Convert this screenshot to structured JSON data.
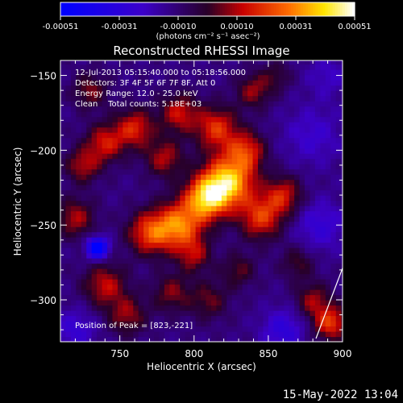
{
  "chart_data": {
    "type": "heatmap",
    "title": "Reconstructed RHESSI Image",
    "xlabel": "Heliocentric X (arcsec)",
    "ylabel": "Heliocentric Y (arcsec)",
    "xlim": [
      710,
      900
    ],
    "ylim": [
      -328,
      -140
    ],
    "x_ticks": [
      750,
      800,
      850,
      900
    ],
    "y_ticks": [
      -150,
      -200,
      -250,
      -300
    ],
    "colorbar": {
      "ticks": [
        "-0.00051",
        "-0.00031",
        "-0.00010",
        "0.00010",
        "0.00031",
        "0.00051"
      ],
      "label": "(photons cm⁻² s⁻¹ asec⁻²)",
      "range": [
        -0.00051,
        0.00051
      ]
    },
    "annotations": [
      "12-Jul-2013 05:15:40.000 to 05:18:56.000",
      "Detectors: 3F 4F 5F 6F 7F 8F, Att 0",
      "Energy Range: 12.0 - 25.0 keV",
      "Clean    Total counts: 5.18E+03"
    ],
    "peak_label": "Position of Peak = [823,-221]",
    "peak": {
      "x": 823,
      "y": -221
    },
    "blobs": [
      {
        "x": 823,
        "y": -221,
        "v": 0.00051,
        "s": 12
      },
      {
        "x": 808,
        "y": -232,
        "v": 0.00044,
        "s": 10
      },
      {
        "x": 790,
        "y": -250,
        "v": 0.0004,
        "s": 11
      },
      {
        "x": 770,
        "y": -255,
        "v": 0.00032,
        "s": 10
      },
      {
        "x": 845,
        "y": -245,
        "v": 0.0003,
        "s": 10
      },
      {
        "x": 860,
        "y": -230,
        "v": 0.00026,
        "s": 9
      },
      {
        "x": 835,
        "y": -200,
        "v": 0.00028,
        "s": 9
      },
      {
        "x": 815,
        "y": -185,
        "v": 0.0003,
        "s": 10
      },
      {
        "x": 790,
        "y": -175,
        "v": 0.00025,
        "s": 9
      },
      {
        "x": 760,
        "y": -185,
        "v": 0.00028,
        "s": 9
      },
      {
        "x": 740,
        "y": -195,
        "v": 0.00026,
        "s": 9
      },
      {
        "x": 725,
        "y": -210,
        "v": 0.00022,
        "s": 8
      },
      {
        "x": 720,
        "y": -245,
        "v": 0.00022,
        "s": 9
      },
      {
        "x": 740,
        "y": -290,
        "v": 0.00024,
        "s": 10
      },
      {
        "x": 755,
        "y": -310,
        "v": 0.0002,
        "s": 9
      },
      {
        "x": 785,
        "y": -295,
        "v": 0.00018,
        "s": 9
      },
      {
        "x": 810,
        "y": -300,
        "v": 0.00016,
        "s": 9
      },
      {
        "x": 830,
        "y": -280,
        "v": 0.00015,
        "s": 8
      },
      {
        "x": 870,
        "y": -275,
        "v": 0.00014,
        "s": 8
      },
      {
        "x": 880,
        "y": -300,
        "v": 0.0002,
        "s": 8
      },
      {
        "x": 892,
        "y": -315,
        "v": 0.00032,
        "s": 8
      },
      {
        "x": 840,
        "y": -160,
        "v": 0.0002,
        "s": 8
      },
      {
        "x": 780,
        "y": -205,
        "v": 0.00022,
        "s": 9
      },
      {
        "x": 800,
        "y": -270,
        "v": 0.0002,
        "s": 8
      },
      {
        "x": 855,
        "y": -150,
        "v": 0.00012,
        "s": 7
      },
      {
        "x": 730,
        "y": -160,
        "v": 0.00018,
        "s": 8
      },
      {
        "x": 735,
        "y": -265,
        "v": -0.00046,
        "s": 5
      },
      {
        "x": 880,
        "y": -190,
        "v": -0.00012,
        "s": 14
      },
      {
        "x": 885,
        "y": -250,
        "v": -0.00015,
        "s": 12
      },
      {
        "x": 860,
        "y": -320,
        "v": -0.00018,
        "s": 10
      },
      {
        "x": 720,
        "y": -320,
        "v": -0.00014,
        "s": 10
      },
      {
        "x": 890,
        "y": -150,
        "v": -0.0001,
        "s": 10
      }
    ]
  },
  "footer": {
    "timestamp": "15-May-2022 13:04"
  }
}
